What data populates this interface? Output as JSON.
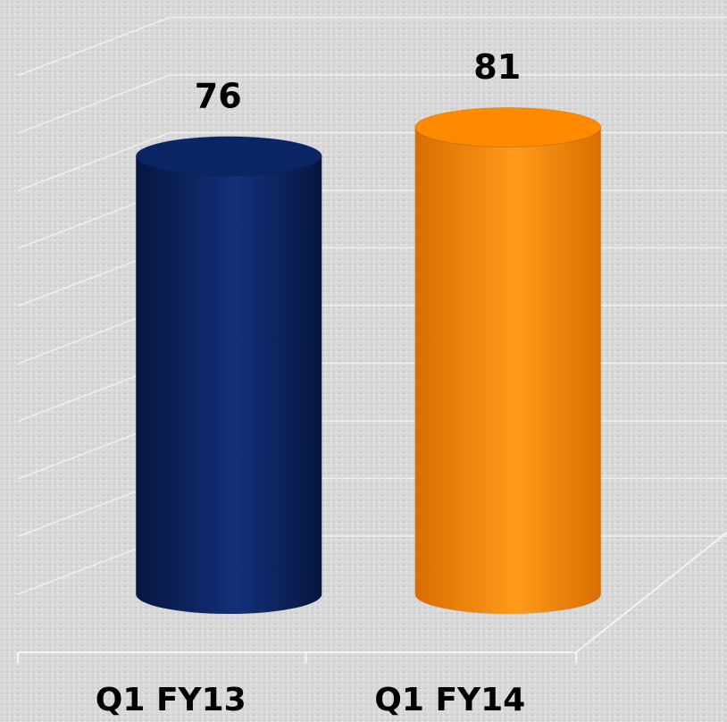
{
  "chart_data": {
    "type": "bar",
    "categories": [
      "Q1 FY13",
      "Q1 FY14"
    ],
    "values": [
      76,
      81
    ],
    "colors": [
      "#0b2463",
      "#ff8a00"
    ],
    "ylim": [
      0,
      90
    ],
    "yticks": [
      0,
      10,
      20,
      30,
      40,
      50,
      60,
      70,
      80,
      90
    ],
    "grid": true
  }
}
